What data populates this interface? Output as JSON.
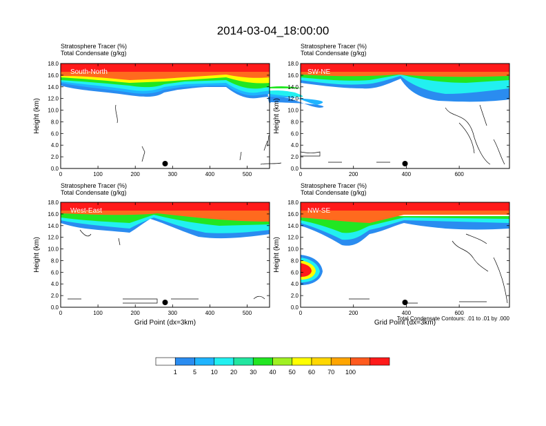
{
  "title": "2014-03-04_18:00:00",
  "footnote": "Total Condensate Contours: .01 to .01 by .000",
  "colorbar": {
    "labels": [
      "1",
      "5",
      "10",
      "20",
      "30",
      "40",
      "50",
      "60",
      "70",
      "100"
    ],
    "colors": [
      "#ffffff",
      "#2a8cf0",
      "#1fb4ff",
      "#22f0f0",
      "#22e6a0",
      "#22e622",
      "#a0f022",
      "#ffff00",
      "#ffd700",
      "#ffa500",
      "#ff5a1e",
      "#ff1a1a"
    ]
  },
  "chart_data": [
    {
      "type": "contour",
      "panel_label": "South-North",
      "header_line1": "Stratosphere Tracer   (%)",
      "header_line2": "Total Condensate   (g/kg)",
      "ylabel": "Height (km)",
      "xlabel": "",
      "xlim": [
        0,
        560
      ],
      "ylim": [
        0,
        18
      ],
      "xticks": [
        "0",
        "100",
        "200",
        "300",
        "400",
        "500"
      ],
      "yticks": [
        "0.0",
        "2.0",
        "4.0",
        "6.0",
        "8.0",
        "10.0",
        "12.0",
        "14.0",
        "16.0",
        "18.0"
      ],
      "marker_x": 280
    },
    {
      "type": "contour",
      "panel_label": "SW-NE",
      "header_line1": "Stratosphere Tracer   (%)",
      "header_line2": "Total Condensate   (g/kg)",
      "ylabel": "Height (km)",
      "xlabel": "",
      "xlim": [
        0,
        790
      ],
      "ylim": [
        0,
        18
      ],
      "xticks": [
        "0",
        "200",
        "400",
        "600"
      ],
      "yticks": [
        "0.0",
        "2.0",
        "4.0",
        "6.0",
        "8.0",
        "10.0",
        "12.0",
        "14.0",
        "16.0",
        "18.0"
      ],
      "marker_x": 395
    },
    {
      "type": "contour",
      "panel_label": "West-East",
      "header_line1": "Stratosphere Tracer   (%)",
      "header_line2": "Total Condensate   (g/kg)",
      "ylabel": "Height (km)",
      "xlabel": "Grid Point (dx=3km)",
      "xlim": [
        0,
        560
      ],
      "ylim": [
        0,
        18
      ],
      "xticks": [
        "0",
        "100",
        "200",
        "300",
        "400",
        "500"
      ],
      "yticks": [
        "0.0",
        "2.0",
        "4.0",
        "6.0",
        "8.0",
        "10.0",
        "12.0",
        "14.0",
        "16.0",
        "18.0"
      ],
      "marker_x": 280
    },
    {
      "type": "contour",
      "panel_label": "NW-SE",
      "header_line1": "Stratosphere Tracer   (%)",
      "header_line2": "Total Condensate   (g/kg)",
      "ylabel": "Height (km)",
      "xlabel": "Grid Point (dx=3km)",
      "xlim": [
        0,
        790
      ],
      "ylim": [
        0,
        18
      ],
      "xticks": [
        "0",
        "200",
        "400",
        "600"
      ],
      "yticks": [
        "0.0",
        "2.0",
        "4.0",
        "6.0",
        "8.0",
        "10.0",
        "12.0",
        "14.0",
        "16.0",
        "18.0"
      ],
      "marker_x": 395
    }
  ]
}
